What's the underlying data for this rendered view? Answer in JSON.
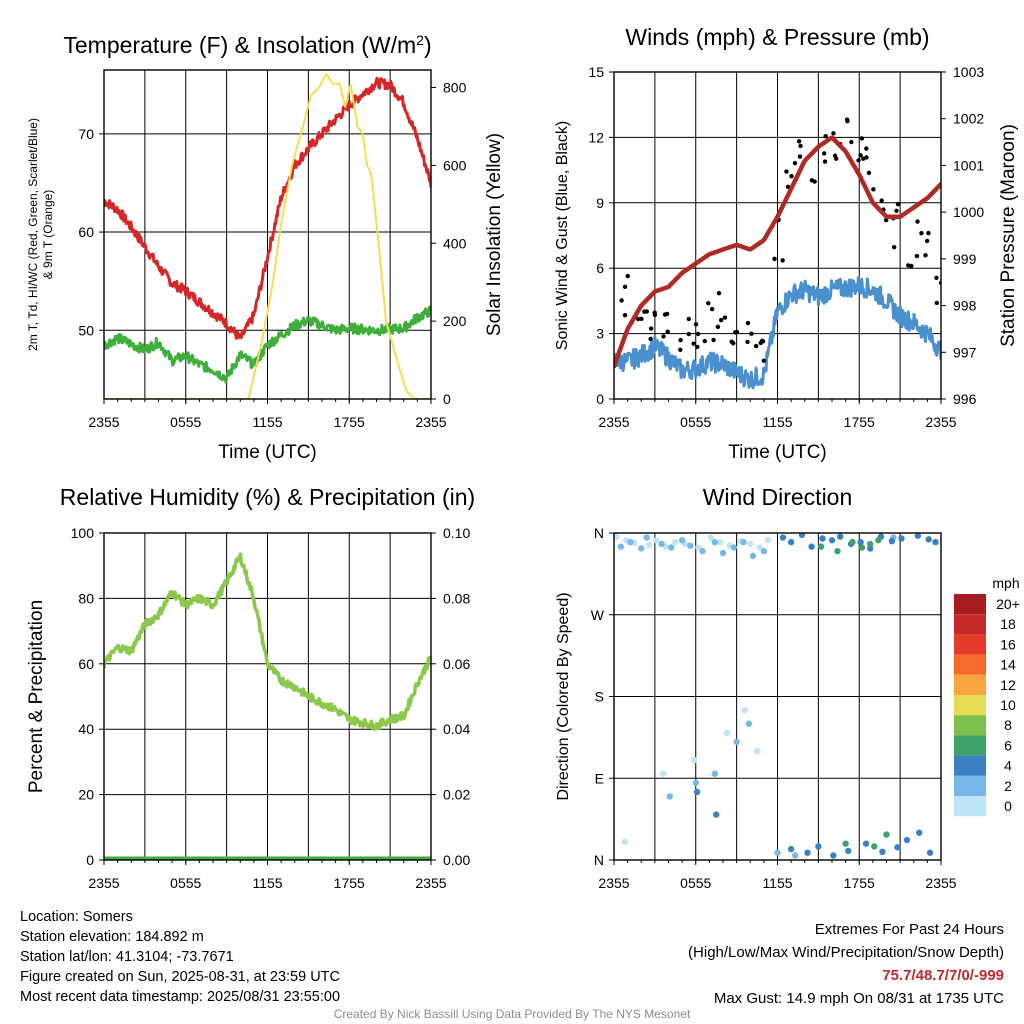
{
  "chart_data": [
    {
      "type": "line",
      "title": "Temperature (F) & Insolation (W/m²)",
      "xlabel": "Time (UTC)",
      "ylabel": "2m T, Td, HI/WC (Red, Green, Scarlet/Blue) & 9m T (Orange)",
      "ylabel_right": "Solar Insolation (Yellow)",
      "x_ticks": [
        "2355",
        "0555",
        "1155",
        "1755",
        "2355"
      ],
      "y_ticks": [
        "50",
        "60",
        "70"
      ],
      "y2_ticks": [
        "0",
        "200",
        "400",
        "600",
        "800"
      ],
      "xlim": [
        0,
        24
      ],
      "ylim": [
        43,
        76.5
      ],
      "y2lim": [
        0,
        845
      ],
      "grid": true,
      "series": [
        {
          "color": "#d62728",
          "axis": "left",
          "x": [
            0,
            1,
            2,
            3,
            4,
            5,
            6,
            7,
            8,
            9,
            10,
            11,
            12,
            13,
            14,
            15,
            16,
            17,
            18,
            19,
            20,
            21,
            22,
            23,
            24
          ],
          "y": [
            63.2,
            62.3,
            60.5,
            58.5,
            56.5,
            54.8,
            54.0,
            52.9,
            51.8,
            50.7,
            49.1,
            51.5,
            57.5,
            63.5,
            66.8,
            68.5,
            70.0,
            71.5,
            72.9,
            74.1,
            75.2,
            75.0,
            73.2,
            69.5,
            65.0
          ]
        },
        {
          "color": "#3fae3a",
          "axis": "left",
          "x": [
            0,
            1,
            2,
            3,
            4,
            5,
            6,
            7,
            8,
            9,
            10,
            11,
            12,
            13,
            14,
            15,
            16,
            17,
            18,
            19,
            20,
            21,
            22,
            23,
            24
          ],
          "y": [
            48.5,
            49.2,
            48.6,
            48.0,
            48.8,
            46.9,
            47.4,
            46.5,
            46.0,
            45.1,
            47.5,
            46.5,
            48.5,
            49.5,
            50.5,
            51.0,
            50.5,
            50.0,
            50.2,
            50.1,
            50.0,
            50.1,
            50.2,
            51.3,
            52.0
          ]
        },
        {
          "color": "#f5dc52",
          "axis": "right",
          "x": [
            0,
            10.6,
            11.6,
            12.4,
            13.0,
            13.8,
            14.6,
            15.2,
            15.8,
            16.3,
            16.8,
            17.3,
            17.7,
            18.1,
            18.6,
            19.0,
            19.3,
            19.6,
            20.1,
            20.7,
            21.5,
            22.2,
            22.8,
            24
          ],
          "y": [
            0,
            0,
            150,
            300,
            450,
            600,
            700,
            780,
            800,
            835,
            810,
            810,
            750,
            810,
            700,
            680,
            600,
            580,
            420,
            200,
            100,
            20,
            0,
            0
          ]
        }
      ]
    },
    {
      "type": "scatter",
      "title": "Winds (mph) & Pressure (mb)",
      "xlabel": "Time (UTC)",
      "ylabel": "Sonic Wind & Gust (Blue, Black)",
      "ylabel_right": "Station Pressure (Maroon)",
      "x_ticks": [
        "2355",
        "0555",
        "1155",
        "1755",
        "2355"
      ],
      "y_ticks": [
        "0",
        "3",
        "6",
        "9",
        "12",
        "15"
      ],
      "y2_ticks": [
        "996",
        "997",
        "998",
        "999",
        "1000",
        "1001",
        "1002",
        "1003"
      ],
      "xlim": [
        0,
        24
      ],
      "ylim": [
        0,
        15
      ],
      "y2lim": [
        996,
        1003
      ],
      "grid": true,
      "series": [
        {
          "color": "#4a90cf",
          "kind": "line",
          "axis": "left",
          "x": [
            0,
            1,
            2,
            3,
            4,
            5,
            6,
            7,
            8,
            9,
            10,
            11,
            12,
            13,
            14,
            15,
            16,
            17,
            18,
            19,
            20,
            21,
            22,
            23,
            24
          ],
          "y": [
            1.8,
            1.7,
            2.0,
            2.4,
            1.9,
            1.3,
            1.4,
            1.7,
            1.6,
            1.2,
            0.9,
            1.1,
            4.0,
            4.8,
            5.0,
            4.7,
            5.0,
            5.1,
            5.2,
            5.0,
            4.5,
            3.8,
            3.5,
            3.0,
            2.2
          ]
        },
        {
          "color": "#000000",
          "kind": "points",
          "axis": "left",
          "x": [
            0,
            1,
            2,
            3,
            4,
            5,
            6,
            7,
            8,
            9,
            10,
            11,
            12,
            13,
            14,
            15,
            16,
            17,
            18,
            19,
            20,
            21,
            22,
            23,
            24
          ],
          "y": [
            4.5,
            4.8,
            4.2,
            3.6,
            3.2,
            3.0,
            3.3,
            3.5,
            3.8,
            2.9,
            2.4,
            2.6,
            7.2,
            10.0,
            11.5,
            10.8,
            12.0,
            12.5,
            11.2,
            10.4,
            8.8,
            8.0,
            7.1,
            6.6,
            4.6
          ]
        },
        {
          "color": "#b02a25",
          "kind": "line",
          "axis": "right",
          "x": [
            0,
            1,
            2,
            3,
            4,
            5,
            6,
            7,
            8,
            9,
            10,
            11,
            12,
            13,
            14,
            15,
            16,
            17,
            18,
            19,
            20,
            21,
            22,
            23,
            24
          ],
          "y": [
            996.7,
            997.5,
            998.0,
            998.3,
            998.4,
            998.7,
            998.9,
            999.1,
            999.2,
            999.3,
            999.2,
            999.4,
            999.9,
            1000.5,
            1001.1,
            1001.4,
            1001.6,
            1001.3,
            1000.8,
            1000.2,
            999.9,
            999.9,
            1000.1,
            1000.3,
            1000.6
          ]
        }
      ]
    },
    {
      "type": "line",
      "title": "Relative Humidity (%) & Precipitation (in)",
      "xlabel": "",
      "ylabel": "Percent & Precipitation",
      "x_ticks": [
        "2355",
        "0555",
        "1155",
        "1755",
        "2355"
      ],
      "y_ticks": [
        "0",
        "20",
        "40",
        "60",
        "80",
        "100"
      ],
      "y2_ticks": [
        "0.00",
        "0.02",
        "0.04",
        "0.06",
        "0.08",
        "0.10"
      ],
      "xlim": [
        0,
        24
      ],
      "ylim": [
        0,
        100
      ],
      "y2lim": [
        0,
        0.1
      ],
      "grid": true,
      "series": [
        {
          "color": "#8cc84b",
          "axis": "left",
          "x": [
            0,
            1,
            2,
            3,
            4,
            5,
            6,
            7,
            8,
            9,
            10,
            11,
            12,
            13,
            14,
            15,
            16,
            17,
            18,
            19,
            20,
            21,
            22,
            23,
            24
          ],
          "y": [
            60,
            65,
            64,
            72,
            75,
            82,
            78,
            80,
            78,
            85,
            93,
            80,
            60,
            55,
            53,
            50,
            48,
            46,
            43,
            42,
            41,
            43,
            44,
            54,
            62
          ]
        },
        {
          "color": "#3fae3a",
          "axis": "right",
          "x": [
            0,
            24
          ],
          "y": [
            0,
            0
          ]
        }
      ]
    },
    {
      "type": "scatter",
      "title": "Wind Direction",
      "xlabel": "",
      "ylabel": "Direction (Colored By Speed)",
      "x_ticks": [
        "2355",
        "0555",
        "1155",
        "1755",
        "2355"
      ],
      "y_ticks": [
        "N",
        "E",
        "S",
        "W",
        "N"
      ],
      "xlim": [
        0,
        24
      ],
      "ylim": [
        0,
        360
      ],
      "grid": true,
      "legend": {
        "title": "mph",
        "position": "right",
        "labels": [
          "20+",
          "18",
          "16",
          "14",
          "12",
          "10",
          "8",
          "6",
          "4",
          "2",
          "0"
        ],
        "colors": [
          "#a61c1f",
          "#c52a2a",
          "#e23b2c",
          "#f36a2b",
          "#f9a640",
          "#e6dc55",
          "#7dc04c",
          "#3da168",
          "#3a80c4",
          "#76b8e8",
          "#bfe3f7"
        ]
      },
      "series": [
        {
          "color": "#bfe3f7",
          "speed_band": "0-2",
          "x": [
            0.2,
            0.9,
            1.5,
            2.6,
            3.1,
            3.8,
            4.5,
            5.2,
            6.2,
            7.1,
            7.8,
            8.5,
            9.3,
            10.0,
            10.7,
            11.3,
            0.8,
            3.6,
            5.9,
            8.3,
            9.6,
            10.5
          ],
          "y": [
            356,
            352,
            349,
            347,
            352,
            345,
            350,
            348,
            344,
            355,
            350,
            346,
            351,
            348,
            344,
            352,
            20,
            95,
            110,
            140,
            165,
            120
          ]
        },
        {
          "color": "#76b8e8",
          "speed_band": "2-4",
          "x": [
            0.5,
            1.2,
            2.0,
            2.4,
            3.5,
            4.2,
            5.0,
            5.6,
            6.5,
            7.4,
            8.0,
            8.8,
            9.5,
            10.2,
            11.0,
            4.1,
            6.0,
            7.4,
            9.0,
            9.9,
            12.0,
            13.3,
            20.5
          ],
          "y": [
            345,
            350,
            343,
            355,
            348,
            344,
            352,
            346,
            340,
            350,
            338,
            344,
            350,
            335,
            340,
            70,
            85,
            95,
            130,
            150,
            8,
            5,
            355
          ]
        },
        {
          "color": "#3a80c4",
          "speed_band": "4-6",
          "x": [
            12.4,
            13.0,
            13.8,
            14.5,
            15.3,
            16.0,
            16.6,
            17.4,
            18.1,
            18.8,
            19.6,
            20.4,
            21.1,
            22.3,
            23.1,
            23.6,
            13.0,
            14.2,
            15.0,
            16.1,
            17.2,
            18.5,
            19.7,
            20.8,
            21.5,
            22.4,
            23.2,
            6.1,
            7.5
          ],
          "y": [
            355,
            350,
            358,
            345,
            354,
            352,
            356,
            348,
            350,
            343,
            356,
            351,
            354,
            357,
            353,
            350,
            12,
            8,
            15,
            5,
            10,
            18,
            9,
            14,
            22,
            30,
            8,
            75,
            50
          ]
        },
        {
          "color": "#3da168",
          "speed_band": "6-8",
          "x": [
            15.2,
            16.4,
            17.5,
            18.2,
            18.8,
            19.4,
            17.0,
            19.1,
            20.0
          ],
          "y": [
            345,
            340,
            350,
            344,
            348,
            352,
            18,
            15,
            28
          ]
        }
      ]
    }
  ],
  "info": {
    "location": "Location: Somers",
    "elevation": "Station elevation: 184.892 m",
    "latlon": "Station lat/lon: 41.3104; -73.7671",
    "created": "Figure created on Sun, 2025-08-31, at 23:59 UTC",
    "recent": "Most recent data timestamp: 2025/08/31 23:55:00"
  },
  "extremes": {
    "heading": "Extremes For Past 24 Hours",
    "subheading": "(High/Low/Max Wind/Precipitation/Snow Depth)",
    "values": "75.7/48.7/7/0/-999",
    "gust": "Max Gust: 14.9 mph On 08/31 at 1735 UTC"
  },
  "credit": "Created By Nick Bassill Using Data Provided By The NYS Mesonet"
}
